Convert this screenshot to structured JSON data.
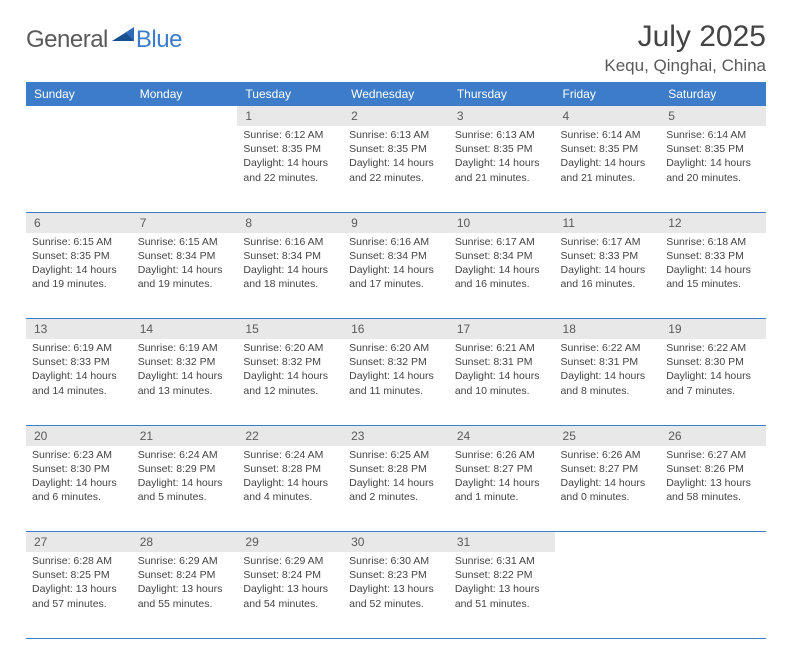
{
  "logo": {
    "text1": "General",
    "text2": "Blue"
  },
  "title": "July 2025",
  "location": "Kequ, Qinghai, China",
  "colors": {
    "header_bg": "#3d7cc9",
    "header_text": "#ffffff",
    "daynum_bg": "#e8e8e8",
    "text": "#444444",
    "border": "#3d7cc9",
    "logo_gray": "#5a5a5a",
    "logo_blue": "#3d7cc9"
  },
  "weekdays": [
    "Sunday",
    "Monday",
    "Tuesday",
    "Wednesday",
    "Thursday",
    "Friday",
    "Saturday"
  ],
  "weeks": [
    [
      null,
      null,
      {
        "n": "1",
        "sr": "6:12 AM",
        "ss": "8:35 PM",
        "dl": "14 hours and 22 minutes."
      },
      {
        "n": "2",
        "sr": "6:13 AM",
        "ss": "8:35 PM",
        "dl": "14 hours and 22 minutes."
      },
      {
        "n": "3",
        "sr": "6:13 AM",
        "ss": "8:35 PM",
        "dl": "14 hours and 21 minutes."
      },
      {
        "n": "4",
        "sr": "6:14 AM",
        "ss": "8:35 PM",
        "dl": "14 hours and 21 minutes."
      },
      {
        "n": "5",
        "sr": "6:14 AM",
        "ss": "8:35 PM",
        "dl": "14 hours and 20 minutes."
      }
    ],
    [
      {
        "n": "6",
        "sr": "6:15 AM",
        "ss": "8:35 PM",
        "dl": "14 hours and 19 minutes."
      },
      {
        "n": "7",
        "sr": "6:15 AM",
        "ss": "8:34 PM",
        "dl": "14 hours and 19 minutes."
      },
      {
        "n": "8",
        "sr": "6:16 AM",
        "ss": "8:34 PM",
        "dl": "14 hours and 18 minutes."
      },
      {
        "n": "9",
        "sr": "6:16 AM",
        "ss": "8:34 PM",
        "dl": "14 hours and 17 minutes."
      },
      {
        "n": "10",
        "sr": "6:17 AM",
        "ss": "8:34 PM",
        "dl": "14 hours and 16 minutes."
      },
      {
        "n": "11",
        "sr": "6:17 AM",
        "ss": "8:33 PM",
        "dl": "14 hours and 16 minutes."
      },
      {
        "n": "12",
        "sr": "6:18 AM",
        "ss": "8:33 PM",
        "dl": "14 hours and 15 minutes."
      }
    ],
    [
      {
        "n": "13",
        "sr": "6:19 AM",
        "ss": "8:33 PM",
        "dl": "14 hours and 14 minutes."
      },
      {
        "n": "14",
        "sr": "6:19 AM",
        "ss": "8:32 PM",
        "dl": "14 hours and 13 minutes."
      },
      {
        "n": "15",
        "sr": "6:20 AM",
        "ss": "8:32 PM",
        "dl": "14 hours and 12 minutes."
      },
      {
        "n": "16",
        "sr": "6:20 AM",
        "ss": "8:32 PM",
        "dl": "14 hours and 11 minutes."
      },
      {
        "n": "17",
        "sr": "6:21 AM",
        "ss": "8:31 PM",
        "dl": "14 hours and 10 minutes."
      },
      {
        "n": "18",
        "sr": "6:22 AM",
        "ss": "8:31 PM",
        "dl": "14 hours and 8 minutes."
      },
      {
        "n": "19",
        "sr": "6:22 AM",
        "ss": "8:30 PM",
        "dl": "14 hours and 7 minutes."
      }
    ],
    [
      {
        "n": "20",
        "sr": "6:23 AM",
        "ss": "8:30 PM",
        "dl": "14 hours and 6 minutes."
      },
      {
        "n": "21",
        "sr": "6:24 AM",
        "ss": "8:29 PM",
        "dl": "14 hours and 5 minutes."
      },
      {
        "n": "22",
        "sr": "6:24 AM",
        "ss": "8:28 PM",
        "dl": "14 hours and 4 minutes."
      },
      {
        "n": "23",
        "sr": "6:25 AM",
        "ss": "8:28 PM",
        "dl": "14 hours and 2 minutes."
      },
      {
        "n": "24",
        "sr": "6:26 AM",
        "ss": "8:27 PM",
        "dl": "14 hours and 1 minute."
      },
      {
        "n": "25",
        "sr": "6:26 AM",
        "ss": "8:27 PM",
        "dl": "14 hours and 0 minutes."
      },
      {
        "n": "26",
        "sr": "6:27 AM",
        "ss": "8:26 PM",
        "dl": "13 hours and 58 minutes."
      }
    ],
    [
      {
        "n": "27",
        "sr": "6:28 AM",
        "ss": "8:25 PM",
        "dl": "13 hours and 57 minutes."
      },
      {
        "n": "28",
        "sr": "6:29 AM",
        "ss": "8:24 PM",
        "dl": "13 hours and 55 minutes."
      },
      {
        "n": "29",
        "sr": "6:29 AM",
        "ss": "8:24 PM",
        "dl": "13 hours and 54 minutes."
      },
      {
        "n": "30",
        "sr": "6:30 AM",
        "ss": "8:23 PM",
        "dl": "13 hours and 52 minutes."
      },
      {
        "n": "31",
        "sr": "6:31 AM",
        "ss": "8:22 PM",
        "dl": "13 hours and 51 minutes."
      },
      null,
      null
    ]
  ],
  "labels": {
    "sunrise": "Sunrise:",
    "sunset": "Sunset:",
    "daylight": "Daylight:"
  }
}
